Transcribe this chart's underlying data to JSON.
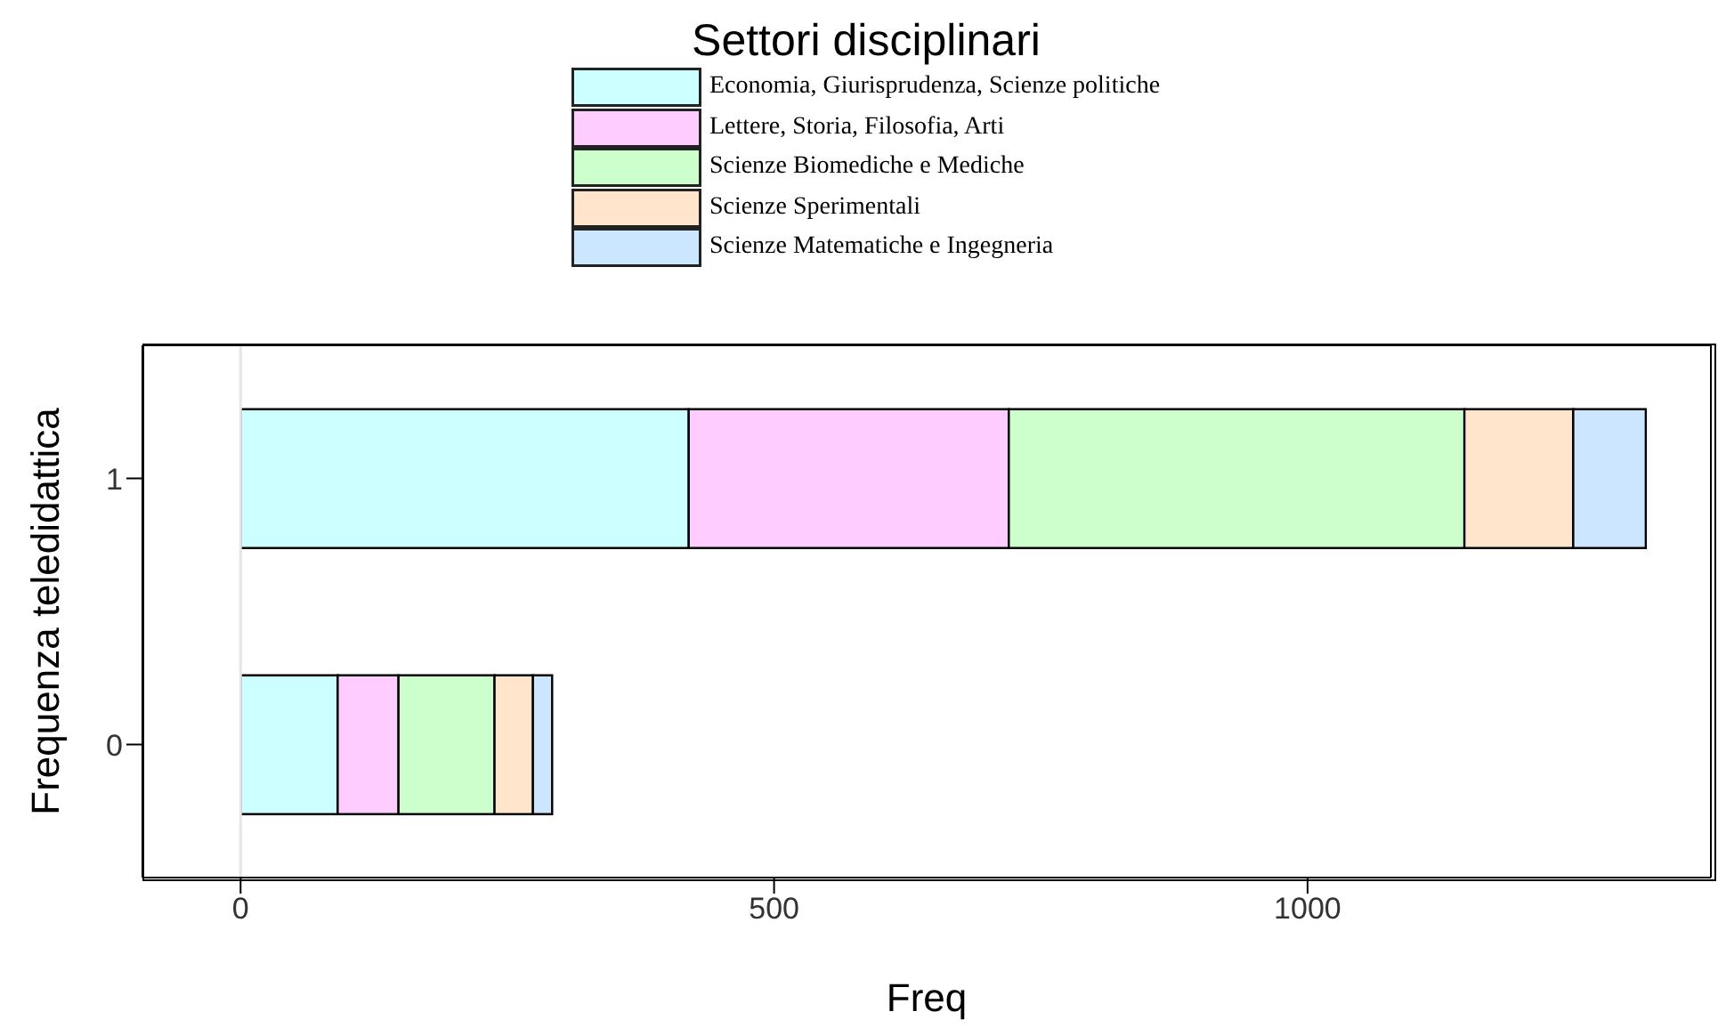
{
  "chart_data": {
    "type": "bar",
    "orientation": "horizontal",
    "stacked": true,
    "legend_title": "Settori disciplinari",
    "xlabel": "Freq",
    "ylabel": "Frequenza teledidattica",
    "categories": [
      "1",
      "0"
    ],
    "series": [
      {
        "name": "Economia, Giurisprudenza, Scienze politiche",
        "color": "#ccffff",
        "values": [
          420,
          91
        ]
      },
      {
        "name": "Lettere, Storia, Filosofia, Arti",
        "color": "#ffccff",
        "values": [
          300,
          57
        ]
      },
      {
        "name": "Scienze Biomediche e Mediche",
        "color": "#ccffcc",
        "values": [
          427,
          90
        ]
      },
      {
        "name": "Scienze Sperimentali",
        "color": "#ffe5cc",
        "values": [
          102,
          36
        ]
      },
      {
        "name": "Scienze Matematiche e Ingegneria",
        "color": "#cce6ff",
        "values": [
          68,
          18
        ]
      }
    ],
    "xlim": [
      -92,
      1378
    ],
    "xticks": [
      0,
      500,
      1000
    ],
    "ref_lines": [
      {
        "axis": "x",
        "value": 0,
        "color": "#e6e6e6"
      }
    ],
    "legend": "top",
    "grid": false
  }
}
